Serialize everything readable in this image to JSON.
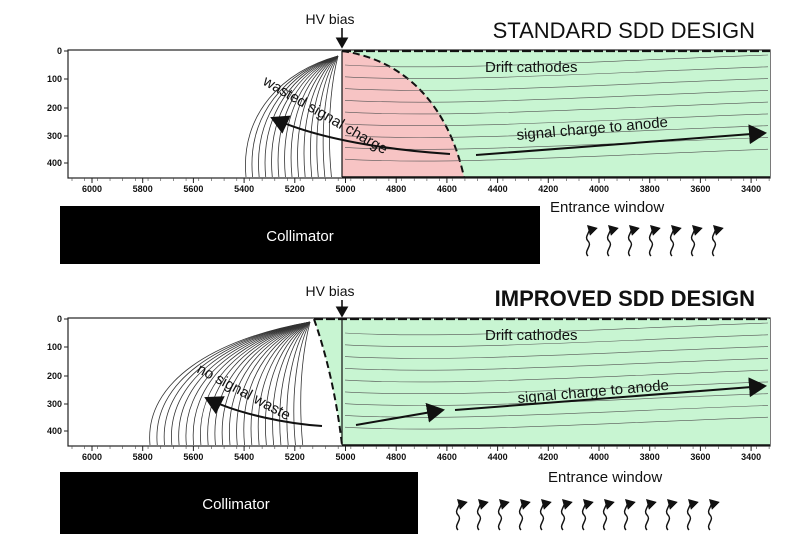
{
  "panels": [
    {
      "title": "STANDARD SDD DESIGN",
      "hv_label": "HV bias",
      "cathodes_label": "Drift cathodes",
      "waste_label": "wasted signal charge",
      "signal_label": "signal charge to anode",
      "entrance_label": "Entrance window",
      "collimator_label": "Collimator",
      "x_ticks": [
        "6000",
        "5800",
        "5600",
        "5400",
        "5200",
        "5000",
        "4800",
        "4600",
        "4400",
        "4200",
        "4000",
        "3800",
        "3600",
        "3400"
      ],
      "y_ticks": [
        "0",
        "100",
        "200",
        "300",
        "400"
      ],
      "photon_arrows": 7
    },
    {
      "title": "IMPROVED SDD DESIGN",
      "hv_label": "HV bias",
      "cathodes_label": "Drift cathodes",
      "waste_label": "no signal waste",
      "signal_label": "signal charge to anode",
      "entrance_label": "Entrance window",
      "collimator_label": "Collimator",
      "x_ticks": [
        "6000",
        "5800",
        "5600",
        "5400",
        "5200",
        "5000",
        "4800",
        "4600",
        "4400",
        "4200",
        "4000",
        "3800",
        "3600",
        "3400"
      ],
      "y_ticks": [
        "0",
        "100",
        "200",
        "300",
        "400"
      ],
      "photon_arrows": 13
    }
  ],
  "colors": {
    "drift_region": "#c8f5d2",
    "waste_region": "#f7c4c4",
    "collimator": "#000000",
    "lines": "#111111"
  }
}
